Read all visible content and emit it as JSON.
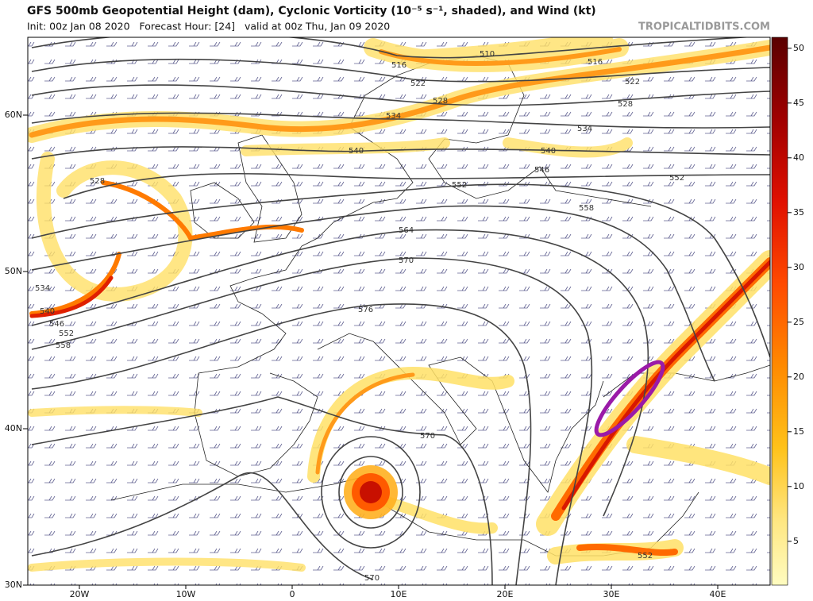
{
  "header": {
    "title": "GFS 500mb Geopotential Height (dam), Cyclonic Vorticity (10⁻⁵ s⁻¹, shaded), and Wind (kt)",
    "subtitle": "Init: 00z Jan 08 2020   Forecast Hour: [24]   valid at 00z Thu, Jan 09 2020",
    "watermark": "TROPICALTIDBITS.COM"
  },
  "map": {
    "lat_labels": [
      "60N",
      "50N",
      "40N",
      "30N"
    ],
    "lon_labels": [
      "20W",
      "10W",
      "0",
      "10E",
      "20E",
      "30E",
      "40E"
    ],
    "contour_labels": [
      "510",
      "516",
      "516",
      "522",
      "522",
      "528",
      "528",
      "534",
      "534",
      "540",
      "540",
      "546",
      "552",
      "552",
      "558",
      "564",
      "570",
      "576",
      "570",
      "570",
      "552",
      "528",
      "534",
      "540",
      "546",
      "552",
      "558"
    ]
  },
  "colorbar": {
    "range": [
      1,
      51
    ],
    "ticks": [
      5,
      10,
      15,
      20,
      25,
      30,
      35,
      40,
      45,
      50
    ]
  }
}
